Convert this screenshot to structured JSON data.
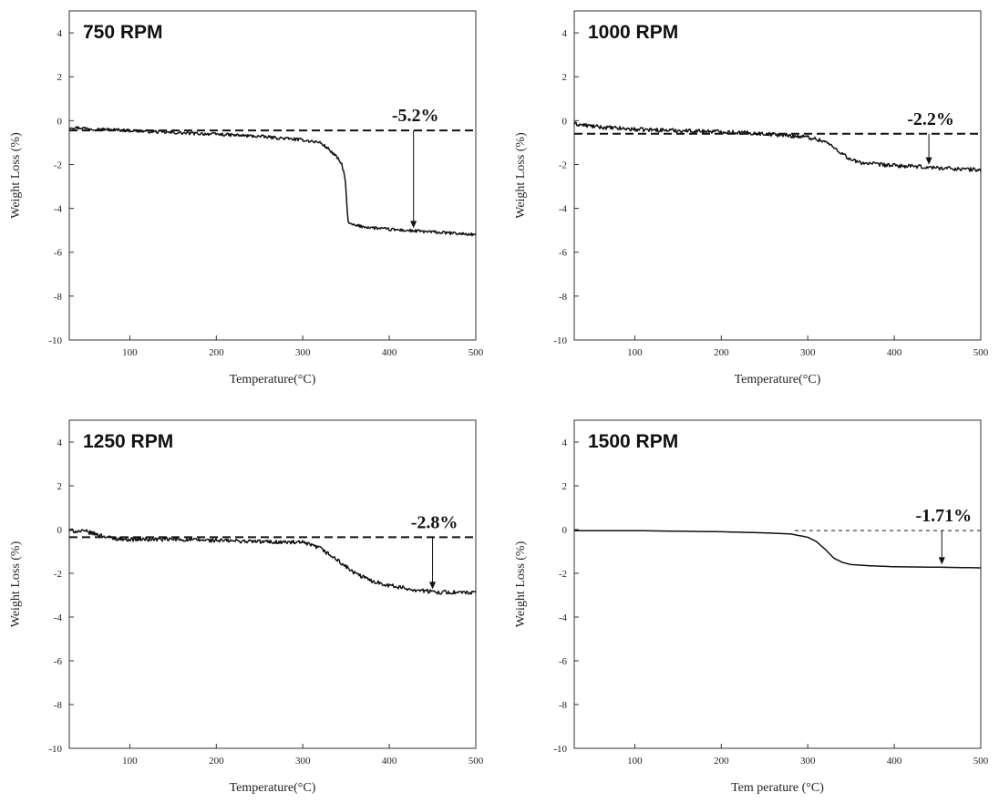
{
  "chart_data": [
    {
      "type": "line",
      "title": "750 RPM",
      "xlabel": "Temperature(°C)",
      "ylabel": "Weight Loss (%)",
      "xlim": [
        30,
        500
      ],
      "ylim": [
        -10,
        5
      ],
      "xticks": [
        100,
        200,
        300,
        400,
        500
      ],
      "yticks": [
        -10,
        -8,
        -6,
        -4,
        -2,
        0,
        2,
        4
      ],
      "series": [
        {
          "x": [
            30,
            60,
            100,
            150,
            200,
            250,
            300,
            320,
            330,
            340,
            345,
            349,
            352,
            355,
            360,
            380,
            400,
            450,
            500
          ],
          "y": [
            -0.3,
            -0.38,
            -0.45,
            -0.55,
            -0.62,
            -0.72,
            -0.88,
            -1.0,
            -1.3,
            -1.7,
            -2.0,
            -2.6,
            -4.6,
            -4.72,
            -4.78,
            -4.88,
            -4.96,
            -5.08,
            -5.2
          ],
          "noise": 0.07
        }
      ],
      "baseline": -0.45,
      "annotation": {
        "text": "-5.2%",
        "x": 428
      }
    },
    {
      "type": "line",
      "title": "1000 RPM",
      "xlabel": "Temperature(°C)",
      "ylabel": "Weight Loss (%)",
      "xlim": [
        30,
        500
      ],
      "ylim": [
        -10,
        5
      ],
      "xticks": [
        100,
        200,
        300,
        400,
        500
      ],
      "yticks": [
        -10,
        -8,
        -6,
        -4,
        -2,
        0,
        2,
        4
      ],
      "series": [
        {
          "x": [
            30,
            60,
            100,
            150,
            200,
            250,
            300,
            320,
            340,
            350,
            360,
            380,
            400,
            450,
            500
          ],
          "y": [
            -0.15,
            -0.3,
            -0.4,
            -0.45,
            -0.5,
            -0.6,
            -0.75,
            -0.95,
            -1.5,
            -1.8,
            -1.9,
            -2.0,
            -2.05,
            -2.15,
            -2.25
          ],
          "noise": 0.09
        }
      ],
      "baseline": -0.6,
      "annotation": {
        "text": "-2.2%",
        "x": 440
      }
    },
    {
      "type": "line",
      "title": "1250 RPM",
      "xlabel": "Temperature(°C)",
      "ylabel": "Weight Loss (%)",
      "xlim": [
        30,
        500
      ],
      "ylim": [
        -10,
        5
      ],
      "xticks": [
        100,
        200,
        300,
        400,
        500
      ],
      "yticks": [
        -10,
        -8,
        -6,
        -4,
        -2,
        0,
        2,
        4
      ],
      "series": [
        {
          "x": [
            30,
            50,
            80,
            100,
            150,
            200,
            250,
            300,
            320,
            340,
            360,
            380,
            400,
            420,
            450,
            500
          ],
          "y": [
            -0.05,
            -0.1,
            -0.4,
            -0.45,
            -0.45,
            -0.5,
            -0.55,
            -0.6,
            -0.85,
            -1.4,
            -2.0,
            -2.35,
            -2.55,
            -2.7,
            -2.85,
            -2.9
          ],
          "noise": 0.09
        }
      ],
      "baseline": -0.35,
      "annotation": {
        "text": "-2.8%",
        "x": 450
      }
    },
    {
      "type": "line",
      "title": "1500 RPM",
      "xlabel": "Tem perature (°C)",
      "ylabel": "Weight Loss (%)",
      "xlim": [
        30,
        500
      ],
      "ylim": [
        -10,
        5
      ],
      "xticks": [
        100,
        200,
        300,
        400,
        500
      ],
      "yticks": [
        -10,
        -8,
        -6,
        -4,
        -2,
        0,
        2,
        4
      ],
      "series": [
        {
          "x": [
            30,
            100,
            200,
            250,
            280,
            300,
            310,
            320,
            330,
            340,
            350,
            370,
            400,
            450,
            500
          ],
          "y": [
            -0.05,
            -0.05,
            -0.1,
            -0.15,
            -0.2,
            -0.35,
            -0.55,
            -0.9,
            -1.3,
            -1.5,
            -1.6,
            -1.65,
            -1.7,
            -1.72,
            -1.75
          ],
          "noise": 0
        }
      ],
      "baseline": -0.05,
      "baseline_style": "dotted",
      "annotation": {
        "text": "-1.71%",
        "x": 455
      }
    }
  ]
}
